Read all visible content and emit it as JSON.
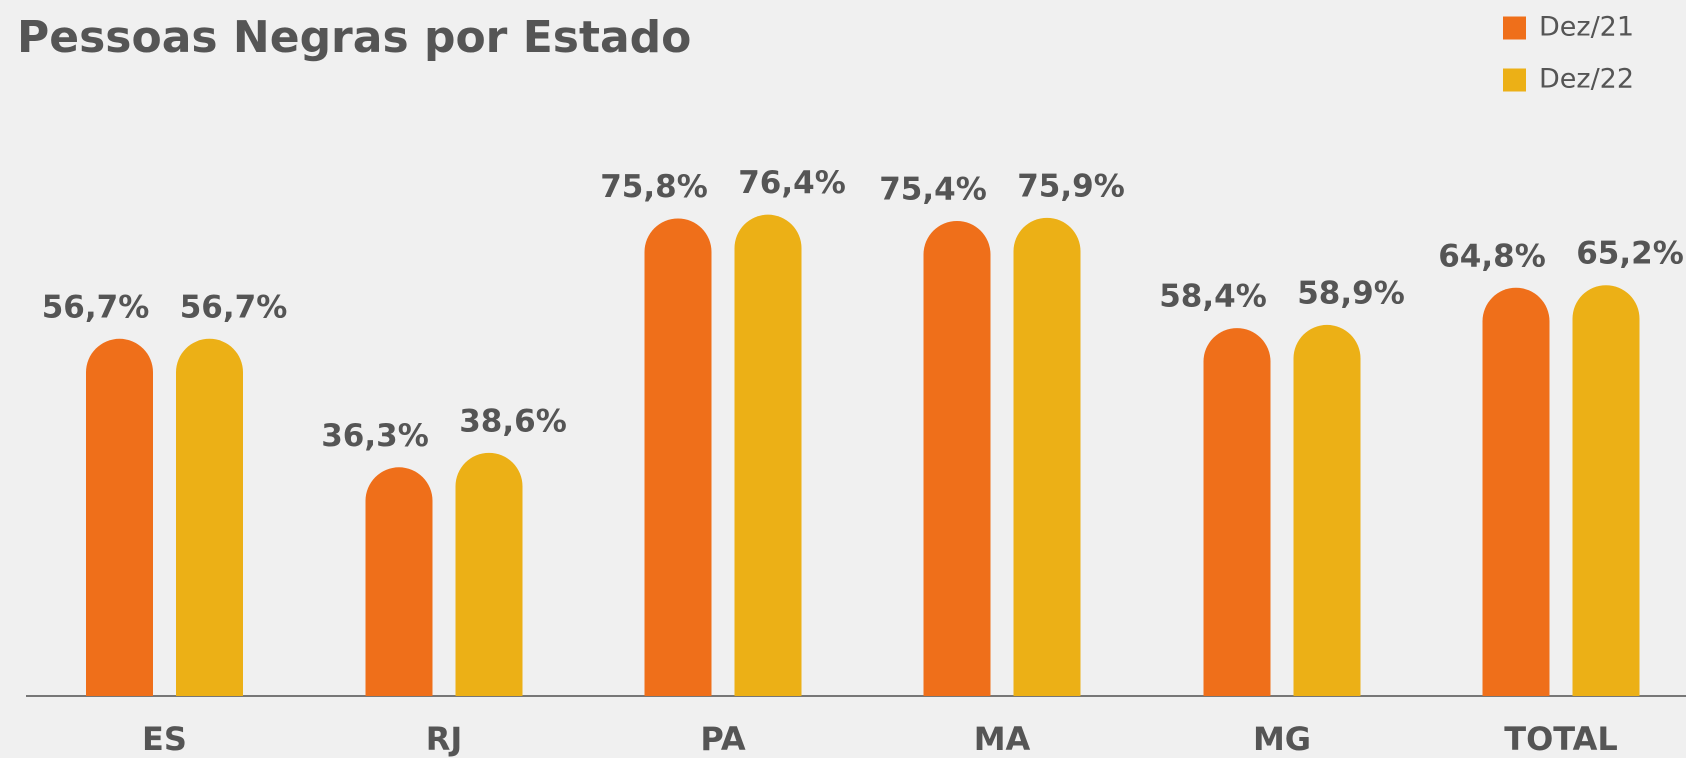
{
  "chart_data": {
    "type": "bar",
    "title": "Pessoas Negras por Estado",
    "categories": [
      "ES",
      "RJ",
      "PA",
      "MA",
      "MG",
      "TOTAL"
    ],
    "series": [
      {
        "name": "Dez/21",
        "color": "#ef6f1a",
        "values": [
          56.7,
          36.3,
          75.8,
          75.4,
          58.4,
          64.8
        ],
        "value_labels": [
          "56,7%",
          "36,3%",
          "75,8%",
          "75,4%",
          "58,4%",
          "64,8%"
        ]
      },
      {
        "name": "Dez/22",
        "color": "#ecb016",
        "values": [
          56.7,
          38.6,
          76.4,
          75.9,
          58.9,
          65.2
        ],
        "value_labels": [
          "56,7%",
          "38,6%",
          "76,4%",
          "75,9%",
          "58,9%",
          "65,2%"
        ]
      }
    ],
    "legend": "top-right"
  }
}
